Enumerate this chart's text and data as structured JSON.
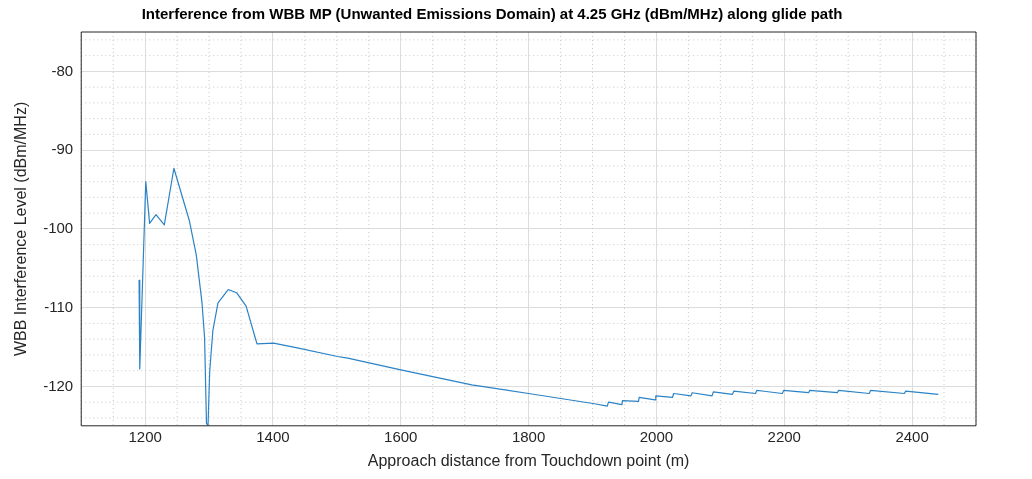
{
  "chart_data": {
    "type": "line",
    "title": "Interference from WBB MP (Unwanted Emissions Domain) at 4.25 GHz (dBm/MHz) along glide path",
    "xlabel": "Approach distance from Touchdown point (m)",
    "ylabel": "WBB Interference Level (dBm/MHz)",
    "xlim": [
      1100,
      2500
    ],
    "ylim": [
      -125,
      -75
    ],
    "xticks": [
      1200,
      1400,
      1600,
      1800,
      2000,
      2200,
      2400
    ],
    "yticks": [
      -120,
      -110,
      -100,
      -90,
      -80
    ],
    "grid": true,
    "series": [
      {
        "color": "#2b83c6",
        "x": [
          1190.5,
          1191.6,
          1201,
          1207,
          1217,
          1230,
          1245,
          1269,
          1280,
          1289,
          1293,
          1296,
          1298.4,
          1301,
          1306,
          1314,
          1330,
          1343,
          1358,
          1375,
          1401,
          1438,
          1501,
          1517,
          1600,
          1711,
          1800,
          1903,
          1923,
          1925,
          1946,
          1947,
          1972,
          1973,
          1998,
          1999,
          2025,
          2027,
          2054,
          2056,
          2087,
          2089,
          2119,
          2121,
          2155,
          2157,
          2197,
          2199,
          2238,
          2240,
          2283,
          2285,
          2333,
          2335,
          2388,
          2390,
          2441
        ],
        "values": [
          -106.5,
          -117.8,
          -94.0,
          -99.3,
          -98.2,
          -99.5,
          -92.3,
          -98.9,
          -103.3,
          -109.4,
          -113.8,
          -124.7,
          -125,
          -118.1,
          -112.9,
          -109.4,
          -107.7,
          -108.1,
          -109.8,
          -114.6,
          -114.5,
          -115.1,
          -116.2,
          -116.4,
          -117.9,
          -119.8,
          -120.9,
          -122.2,
          -122.5,
          -122.0,
          -122.3,
          -121.8,
          -121.9,
          -121.4,
          -121.7,
          -121.2,
          -121.4,
          -120.9,
          -121.2,
          -120.8,
          -121.2,
          -120.7,
          -121.0,
          -120.6,
          -120.9,
          -120.5,
          -120.9,
          -120.5,
          -120.8,
          -120.5,
          -120.8,
          -120.5,
          -120.9,
          -120.5,
          -120.9,
          -120.6,
          -121.0
        ]
      }
    ]
  }
}
